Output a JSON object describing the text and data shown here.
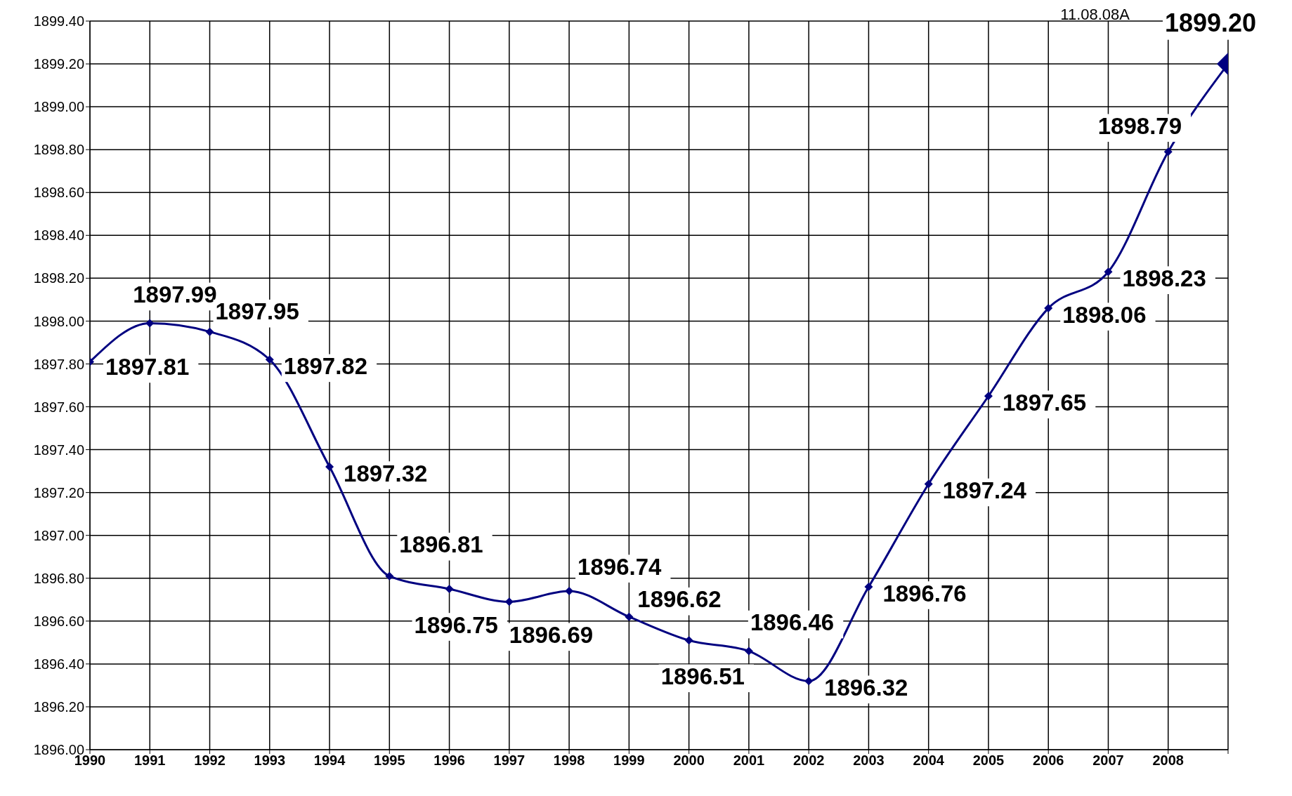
{
  "chart_data": {
    "type": "line",
    "categories": [
      "1990",
      "1991",
      "1992",
      "1993",
      "1994",
      "1995",
      "1996",
      "1997",
      "1998",
      "1999",
      "2000",
      "2001",
      "2002",
      "2003",
      "2004",
      "2005",
      "2006",
      "2007",
      "2008",
      null
    ],
    "series": [
      {
        "color": "#000080",
        "values": [
          1897.81,
          1897.99,
          1897.95,
          1897.82,
          1897.32,
          1896.81,
          1896.75,
          1896.69,
          1896.74,
          1896.62,
          1896.51,
          1896.46,
          1896.32,
          1896.76,
          1897.24,
          1897.65,
          1898.06,
          1898.23,
          1898.79,
          1899.2
        ],
        "value_labels": [
          "1897.81",
          "1897.99",
          "1897.95",
          "1897.82",
          "1897.32",
          "1896.81",
          "1896.75",
          "1896.69",
          "1896.74",
          "1896.62",
          "1896.51",
          "1896.46",
          "1896.32",
          "1896.76",
          "1897.24",
          "1897.65",
          "1898.06",
          "1898.23",
          "1898.79",
          "1899.20"
        ]
      }
    ],
    "ylim": [
      1896,
      1899.4
    ],
    "yticks": [
      {
        "value": 1896,
        "label": "1896.00"
      },
      {
        "value": 1896.2,
        "label": "1896.20"
      },
      {
        "value": 1896.4,
        "label": "1896.40"
      },
      {
        "value": 1896.6,
        "label": "1896.60"
      },
      {
        "value": 1896.8,
        "label": "1896.80"
      },
      {
        "value": 1897,
        "label": "1897.00"
      },
      {
        "value": 1897.2,
        "label": "1897.20"
      },
      {
        "value": 1897.4,
        "label": "1897.40"
      },
      {
        "value": 1897.6,
        "label": "1897.60"
      },
      {
        "value": 1897.8,
        "label": "1897.80"
      },
      {
        "value": 1898,
        "label": "1898.00"
      },
      {
        "value": 1898.2,
        "label": "1898.20"
      },
      {
        "value": 1898.4,
        "label": "1898.40"
      },
      {
        "value": 1898.6,
        "label": "1898.60"
      },
      {
        "value": 1898.8,
        "label": "1898.80"
      },
      {
        "value": 1899,
        "label": "1899.00"
      },
      {
        "value": 1899.2,
        "label": "1899.20"
      },
      {
        "value": 1899.4,
        "label": "1899.40"
      }
    ],
    "grid": true,
    "marker": "diamond",
    "annotations": [
      "11.08.08A"
    ]
  }
}
